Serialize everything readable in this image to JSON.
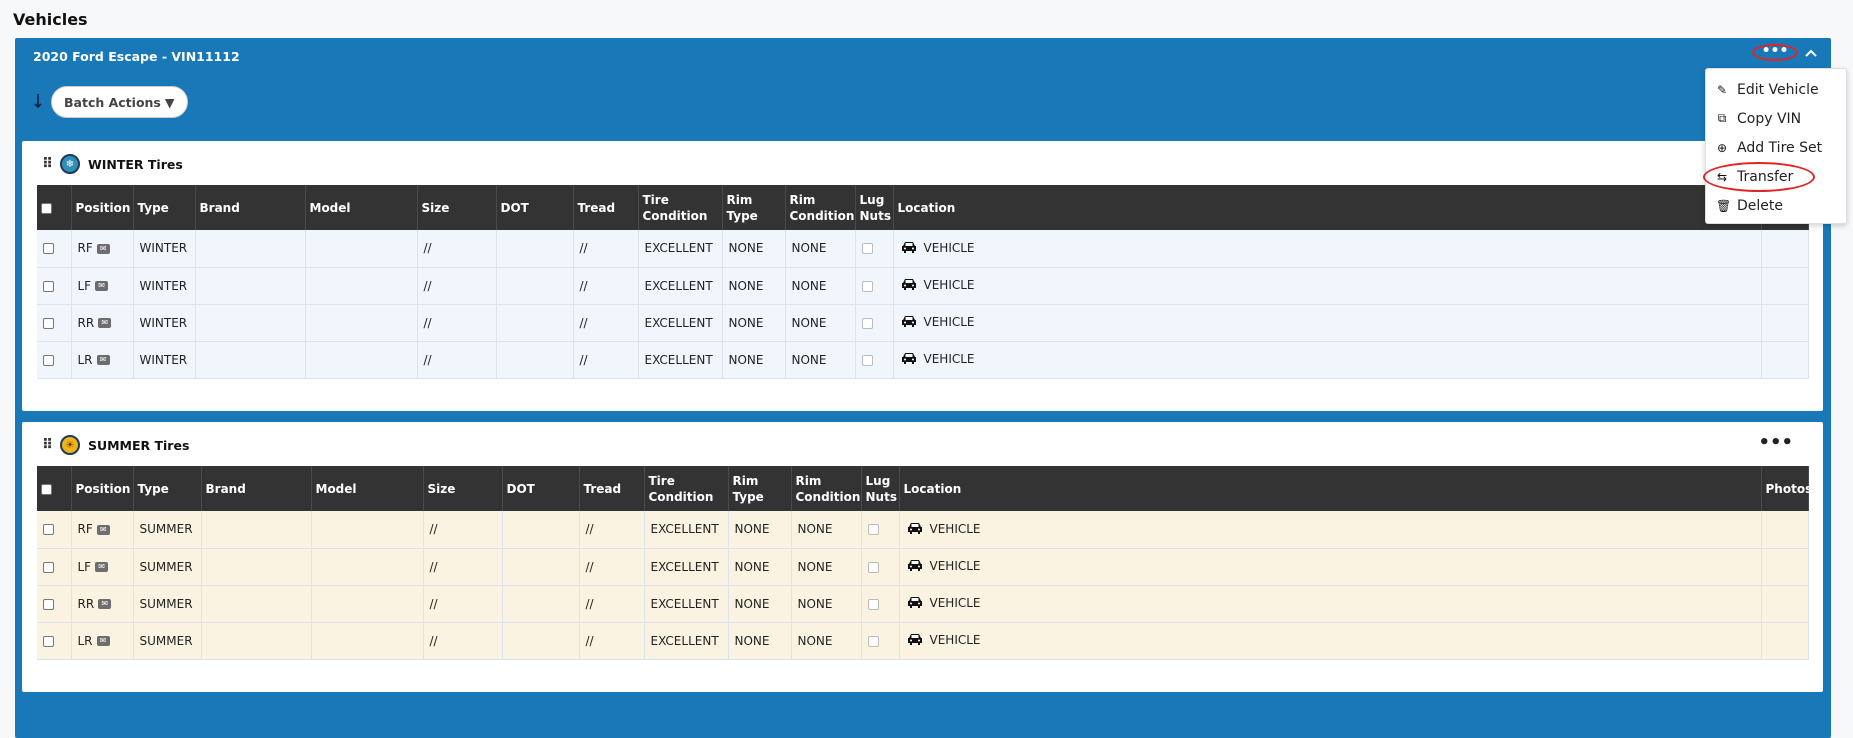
{
  "page": {
    "title": "Vehicles"
  },
  "vehicle": {
    "title": "2020 Ford Escape - VIN11112",
    "more_label": "•••",
    "collapse_icon": "chevron-up-icon",
    "batch_actions_label": "Batch Actions",
    "batch_caret": "▼"
  },
  "menu": {
    "items": [
      {
        "label": "Edit Vehicle",
        "icon": "pencil-icon"
      },
      {
        "label": "Copy VIN",
        "icon": "copy-icon"
      },
      {
        "label": "Add Tire Set",
        "icon": "plus-circle-icon"
      },
      {
        "label": "Transfer",
        "icon": "transfer-icon"
      },
      {
        "label": "Delete",
        "icon": "trash-icon"
      }
    ]
  },
  "columns": [
    "Position",
    "Type",
    "Brand",
    "Model",
    "Size",
    "DOT",
    "Tread",
    "Tire Condition",
    "Rim Type",
    "Rim Condition",
    "Lug Nuts",
    "Location",
    "Photos"
  ],
  "tire_sets": [
    {
      "title": "WINTER Tires",
      "rows": [
        {
          "position": "RF",
          "type": "WINTER",
          "brand": "",
          "model": "",
          "size": "//",
          "dot": "",
          "tread": "//",
          "tire_condition": "EXCELLENT",
          "rim_type": "NONE",
          "rim_condition": "NONE",
          "location": "VEHICLE"
        },
        {
          "position": "LF",
          "type": "WINTER",
          "brand": "",
          "model": "",
          "size": "//",
          "dot": "",
          "tread": "//",
          "tire_condition": "EXCELLENT",
          "rim_type": "NONE",
          "rim_condition": "NONE",
          "location": "VEHICLE"
        },
        {
          "position": "RR",
          "type": "WINTER",
          "brand": "",
          "model": "",
          "size": "//",
          "dot": "",
          "tread": "//",
          "tire_condition": "EXCELLENT",
          "rim_type": "NONE",
          "rim_condition": "NONE",
          "location": "VEHICLE"
        },
        {
          "position": "LR",
          "type": "WINTER",
          "brand": "",
          "model": "",
          "size": "//",
          "dot": "",
          "tread": "//",
          "tire_condition": "EXCELLENT",
          "rim_type": "NONE",
          "rim_condition": "NONE",
          "location": "VEHICLE"
        }
      ]
    },
    {
      "title": "SUMMER Tires",
      "rows": [
        {
          "position": "RF",
          "type": "SUMMER",
          "brand": "",
          "model": "",
          "size": "//",
          "dot": "",
          "tread": "//",
          "tire_condition": "EXCELLENT",
          "rim_type": "NONE",
          "rim_condition": "NONE",
          "location": "VEHICLE"
        },
        {
          "position": "LF",
          "type": "SUMMER",
          "brand": "",
          "model": "",
          "size": "//",
          "dot": "",
          "tread": "//",
          "tire_condition": "EXCELLENT",
          "rim_type": "NONE",
          "rim_condition": "NONE",
          "location": "VEHICLE"
        },
        {
          "position": "RR",
          "type": "SUMMER",
          "brand": "",
          "model": "",
          "size": "//",
          "dot": "",
          "tread": "//",
          "tire_condition": "EXCELLENT",
          "rim_type": "NONE",
          "rim_condition": "NONE",
          "location": "VEHICLE"
        },
        {
          "position": "LR",
          "type": "SUMMER",
          "brand": "",
          "model": "",
          "size": "//",
          "dot": "",
          "tread": "//",
          "tire_condition": "EXCELLENT",
          "rim_type": "NONE",
          "rim_condition": "NONE",
          "location": "VEHICLE"
        }
      ]
    }
  ],
  "colors": {
    "panel": "#1878b8",
    "table_header": "#333333",
    "winter_row": "#f0f6fc",
    "summer_row": "#fbf3e1",
    "highlight": "#e02525"
  }
}
